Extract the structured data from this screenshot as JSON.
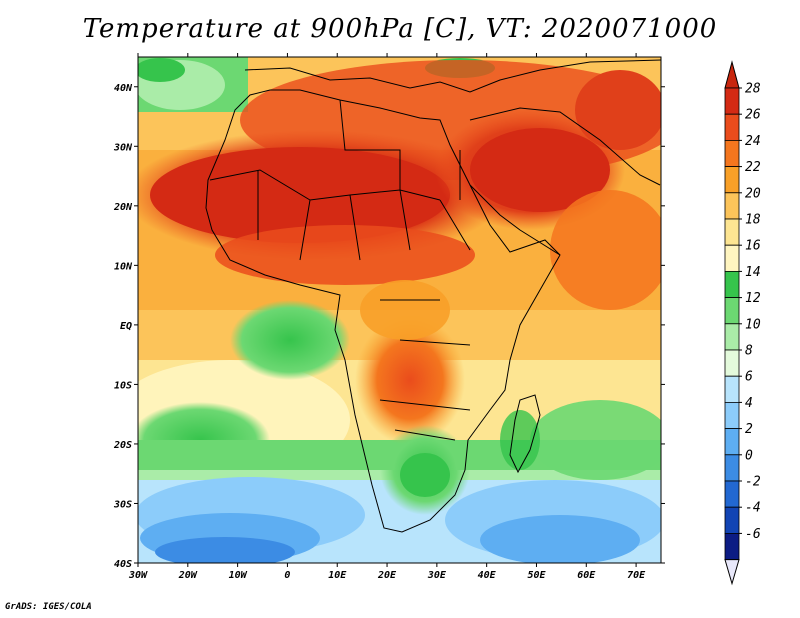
{
  "title": "Temperature at 900hPa [C], VT: 2020071000",
  "footer": "GrADS: IGES/COLA",
  "map": {
    "lon_range": [
      -30,
      75
    ],
    "lat_range": [
      -40,
      45
    ],
    "lon_ticks": [
      "30W",
      "20W",
      "10W",
      "0",
      "10E",
      "20E",
      "30E",
      "40E",
      "50E",
      "60E",
      "70E"
    ],
    "lat_ticks": [
      "40N",
      "30N",
      "20N",
      "10N",
      "EQ",
      "10S",
      "20S",
      "30S",
      "40S"
    ],
    "field": "temperature",
    "unit": "C"
  },
  "colorbar": {
    "labels": [
      "28",
      "26",
      "24",
      "22",
      "20",
      "18",
      "16",
      "14",
      "12",
      "10",
      "8",
      "6",
      "4",
      "2",
      "0",
      "-2",
      "-4",
      "-6"
    ],
    "colors": [
      "#d42a14",
      "#ea4c1c",
      "#f4761e",
      "#f8a028",
      "#fcc45a",
      "#fde592",
      "#fff5c0",
      "#36c44c",
      "#6cd872",
      "#aaeca8",
      "#e4fadc",
      "#b8e4fc",
      "#8cccfa",
      "#5eaef2",
      "#3c8ce4",
      "#2268d2",
      "#1244b4",
      "#0c1c84"
    ],
    "max_color": "#c8260e",
    "min_color": "#e8e8fa"
  }
}
